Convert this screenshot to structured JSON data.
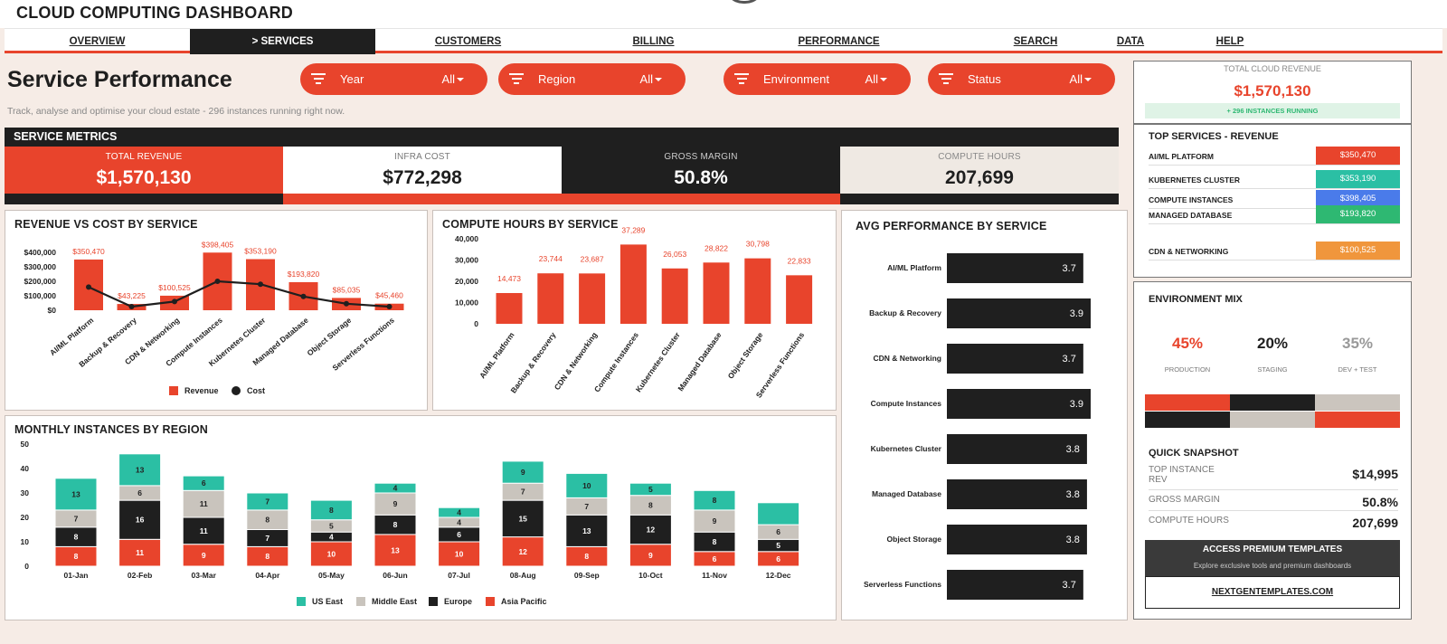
{
  "app": {
    "title": "CLOUD COMPUTING DASHBOARD"
  },
  "nav": [
    {
      "label": "OVERVIEW",
      "active": false
    },
    {
      "label": "> SERVICES",
      "active": true
    },
    {
      "label": "CUSTOMERS",
      "active": false
    },
    {
      "label": "BILLING",
      "active": false
    },
    {
      "label": "PERFORMANCE",
      "active": false
    },
    {
      "label": "SEARCH",
      "active": false
    },
    {
      "label": "DATA",
      "active": false
    },
    {
      "label": "HELP",
      "active": false
    }
  ],
  "page": {
    "title": "Service Performance",
    "subtitle": "Track, analyse and optimise your cloud estate  -  296 instances running right now."
  },
  "filters": [
    {
      "label": "Year",
      "value": "All"
    },
    {
      "label": "Region",
      "value": "All"
    },
    {
      "label": "Environment",
      "value": "All"
    },
    {
      "label": "Status",
      "value": "All"
    }
  ],
  "metrics": {
    "header": "SERVICE METRICS",
    "kpis": [
      {
        "label": "TOTAL REVENUE",
        "value": "$1,570,130"
      },
      {
        "label": "INFRA COST",
        "value": "$772,298"
      },
      {
        "label": "GROSS MARGIN",
        "value": "50.8%"
      },
      {
        "label": "COMPUTE HOURS",
        "value": "207,699"
      }
    ]
  },
  "panels": {
    "rev_cost": "REVENUE VS COST BY SERVICE",
    "compute": "COMPUTE HOURS BY SERVICE",
    "avg_perf": "AVG PERFORMANCE BY SERVICE",
    "monthly": "MONTHLY INSTANCES BY REGION"
  },
  "chart_data": [
    {
      "type": "bar",
      "title": "REVENUE VS COST BY SERVICE",
      "categories": [
        "AI/ML Platform",
        "Backup & Recovery",
        "CDN & Networking",
        "Compute Instances",
        "Kubernetes Cluster",
        "Managed Database",
        "Object Storage",
        "Serverless Functions"
      ],
      "series": [
        {
          "name": "Revenue",
          "type": "bar",
          "values": [
            350470,
            43225,
            100525,
            398405,
            353190,
            193820,
            85035,
            45460
          ]
        },
        {
          "name": "Cost",
          "type": "line",
          "values": [
            160000,
            25000,
            60000,
            200000,
            180000,
            95000,
            45000,
            25000
          ]
        }
      ],
      "data_labels": [
        "$350,470",
        "$43,225",
        "$100,525",
        "$398,405",
        "$353,190",
        "$193,820",
        "$85,035",
        "$45,460"
      ],
      "yticks": [
        "$400,000",
        "$300,000",
        "$200,000",
        "$100,000",
        "$0"
      ],
      "ylim": [
        0,
        400000
      ],
      "legend": "bottom"
    },
    {
      "type": "bar",
      "title": "COMPUTE HOURS BY SERVICE",
      "categories": [
        "AI/ML Platform",
        "Backup & Recovery",
        "CDN & Networking",
        "Compute Instances",
        "Kubernetes Cluster",
        "Managed Database",
        "Object Storage",
        "Serverless Functions"
      ],
      "values": [
        14473,
        23744,
        23687,
        37289,
        26053,
        28822,
        30798,
        22833
      ],
      "data_labels": [
        "14,473",
        "23,744",
        "23,687",
        "37,289",
        "26,053",
        "28,822",
        "30,798",
        "22,833"
      ],
      "yticks": [
        "40,000",
        "30,000",
        "20,000",
        "10,000",
        "0"
      ],
      "ylim": [
        0,
        40000
      ]
    },
    {
      "type": "bar",
      "title": "AVG PERFORMANCE BY SERVICE",
      "orientation": "horizontal",
      "categories": [
        "AI/ML Platform",
        "Backup & Recovery",
        "CDN & Networking",
        "Compute Instances",
        "Kubernetes Cluster",
        "Managed Database",
        "Object Storage",
        "Serverless Functions"
      ],
      "values": [
        3.7,
        3.9,
        3.7,
        3.9,
        3.8,
        3.8,
        3.8,
        3.7
      ],
      "data_labels": [
        "3.7",
        "3.9",
        "3.7",
        "3.9",
        "3.8",
        "3.8",
        "3.8",
        "3.7"
      ],
      "xlim": [
        0,
        3.9
      ]
    },
    {
      "type": "bar",
      "stacked": true,
      "title": "MONTHLY INSTANCES BY REGION",
      "categories": [
        "01-Jan",
        "02-Feb",
        "03-Mar",
        "04-Apr",
        "05-May",
        "06-Jun",
        "07-Jul",
        "08-Aug",
        "09-Sep",
        "10-Oct",
        "11-Nov",
        "12-Dec"
      ],
      "series": [
        {
          "name": "Asia Pacific",
          "values": [
            8,
            11,
            9,
            8,
            10,
            13,
            10,
            12,
            8,
            9,
            6,
            6
          ]
        },
        {
          "name": "Europe",
          "values": [
            8,
            16,
            11,
            7,
            4,
            8,
            6,
            15,
            13,
            12,
            8,
            5
          ]
        },
        {
          "name": "Middle East",
          "values": [
            7,
            6,
            11,
            8,
            5,
            9,
            4,
            7,
            7,
            8,
            9,
            6
          ]
        },
        {
          "name": "US East",
          "values": [
            13,
            13,
            6,
            7,
            8,
            4,
            4,
            9,
            10,
            5,
            8,
            9
          ]
        }
      ],
      "display_labels": {
        "US East": [
          "13",
          "13",
          "6",
          "7",
          "8",
          "4",
          "4",
          "9",
          "10",
          "5",
          "8",
          ""
        ]
      },
      "yticks": [
        "50",
        "40",
        "30",
        "20",
        "10",
        "0"
      ],
      "ylim": [
        0,
        50
      ],
      "legend": "bottom",
      "legend_order": [
        "US East",
        "Middle East",
        "Europe",
        "Asia Pacific"
      ]
    }
  ],
  "legends": {
    "rev_cost": [
      "Revenue",
      "Cost"
    ],
    "monthly": [
      "US East",
      "Middle East",
      "Europe",
      "Asia Pacific"
    ]
  },
  "colors": {
    "accent": "#e8442c",
    "dark": "#1f1f1f",
    "us_east": "#2bbfa4",
    "middle_east": "#c9c4bd",
    "europe": "#1f1f1f",
    "asia_pacific": "#e8442c"
  },
  "total_cloud": {
    "label": "TOTAL CLOUD REVENUE",
    "value": "$1,570,130",
    "badge": "+ 296 INSTANCES RUNNING"
  },
  "top_services": {
    "title": "TOP SERVICES - REVENUE",
    "items": [
      {
        "name": "AI/ML PLATFORM",
        "value": "$350,470",
        "color": "#e8442c"
      },
      {
        "name": "KUBERNETES CLUSTER",
        "value": "$353,190",
        "color": "#2bbfa4"
      },
      {
        "name": "COMPUTE INSTANCES",
        "value": "$398,405",
        "color": "#4a7bea"
      },
      {
        "name": "MANAGED DATABASE",
        "value": "$193,820",
        "color": "#2eb872"
      },
      {
        "name": "CDN & NETWORKING",
        "value": "$100,525",
        "color": "#f0963c"
      }
    ]
  },
  "env_mix": {
    "title": "ENVIRONMENT MIX",
    "items": [
      {
        "pct": "45%",
        "label": "PRODUCTION",
        "color": "#e8442c",
        "share": 0.45
      },
      {
        "pct": "20%",
        "label": "STAGING",
        "color": "#1f1f1f",
        "share": 0.2
      },
      {
        "pct": "35%",
        "label": "DEV + TEST",
        "color": "#999999",
        "share": 0.35
      }
    ]
  },
  "snapshot": {
    "title": "QUICK SNAPSHOT",
    "rows": [
      {
        "label": "TOP INSTANCE\nREV",
        "value": "$14,995"
      },
      {
        "label": "GROSS MARGIN",
        "value": "50.8%"
      },
      {
        "label": "COMPUTE HOURS",
        "value": "207,699"
      }
    ]
  },
  "premium": {
    "title": "ACCESS PREMIUM TEMPLATES",
    "subtitle": "Explore exclusive tools and premium dashboards",
    "link": "NEXTGENTEMPLATES.COM"
  }
}
